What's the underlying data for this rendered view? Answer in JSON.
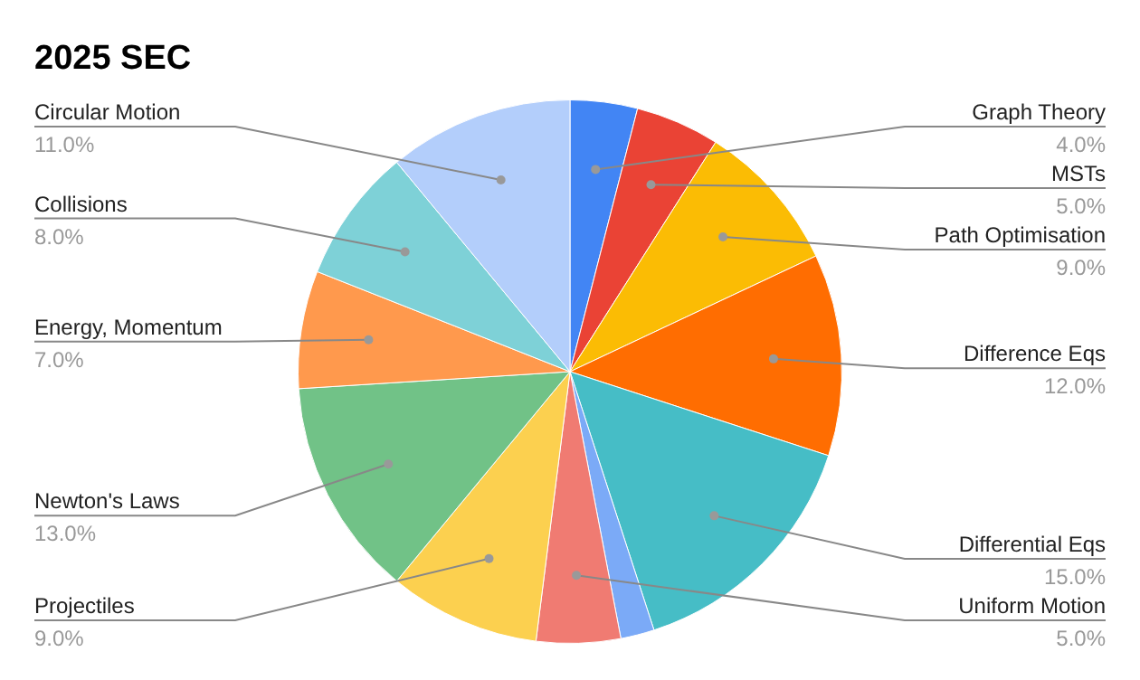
{
  "chart_data": {
    "type": "pie",
    "title": "2025 SEC",
    "categories": [
      "Graph Theory",
      "MSTs",
      "Path Optimisation",
      "Difference Eqs",
      "Differential Eqs",
      null,
      "Uniform Motion",
      "Projectiles",
      "Newton's Laws",
      "Energy, Momentum",
      "Collisions",
      "Circular Motion"
    ],
    "values": [
      4,
      5,
      9,
      12,
      15,
      2,
      5,
      9,
      13,
      7,
      8,
      11
    ],
    "value_labels": [
      "4.0%",
      "5.0%",
      "9.0%",
      "12.0%",
      "15.0%",
      null,
      "5.0%",
      "9.0%",
      "13.0%",
      "7.0%",
      "8.0%",
      "11.0%"
    ],
    "colors": [
      "#4285f4",
      "#ea4335",
      "#fbbc04",
      "#ff6d01",
      "#46bdc6",
      "#7baaf7",
      "#f07b72",
      "#fcd04f",
      "#71c287",
      "#ff994d",
      "#7ed1d7",
      "#b3cefb"
    ],
    "legend": false
  }
}
